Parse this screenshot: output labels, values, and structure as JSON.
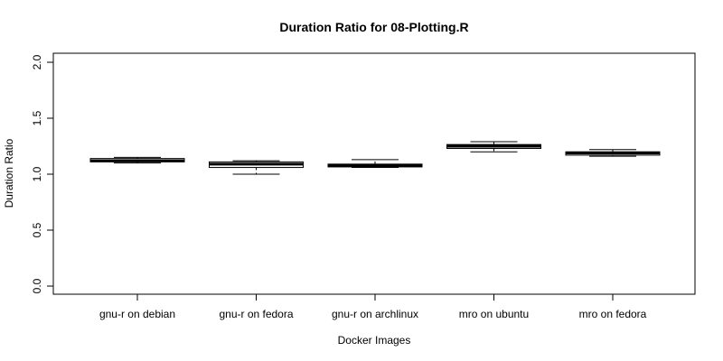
{
  "chart_data": {
    "type": "box",
    "title": "Duration Ratio for 08-Plotting.R",
    "xlabel": "Docker Images",
    "ylabel": "Duration Ratio",
    "ylim": [
      0.0,
      2.0
    ],
    "yticks": [
      "0.0",
      "0.5",
      "1.0",
      "1.5",
      "2.0"
    ],
    "categories": [
      "gnu-r on debian",
      "gnu-r on fedora",
      "gnu-r on archlinux",
      "mro on ubuntu",
      "mro on fedora"
    ],
    "boxes": [
      {
        "category": "gnu-r on debian",
        "min": 1.1,
        "q1": 1.11,
        "median": 1.12,
        "q3": 1.14,
        "max": 1.15
      },
      {
        "category": "gnu-r on fedora",
        "min": 1.0,
        "q1": 1.06,
        "median": 1.09,
        "q3": 1.11,
        "max": 1.12
      },
      {
        "category": "gnu-r on archlinux",
        "min": 1.06,
        "q1": 1.065,
        "median": 1.08,
        "q3": 1.09,
        "max": 1.13
      },
      {
        "category": "mro on ubuntu",
        "min": 1.2,
        "q1": 1.23,
        "median": 1.25,
        "q3": 1.265,
        "max": 1.29
      },
      {
        "category": "mro on fedora",
        "min": 1.16,
        "q1": 1.17,
        "median": 1.19,
        "q3": 1.2,
        "max": 1.22
      }
    ],
    "grid": false,
    "legend": "none"
  }
}
